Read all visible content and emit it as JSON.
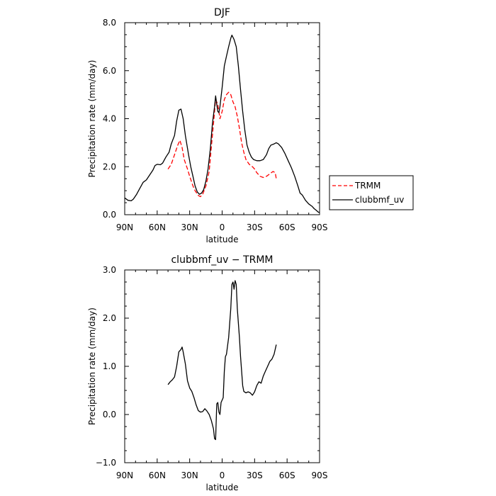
{
  "chart_data": [
    {
      "type": "line",
      "title": "DJF",
      "xlabel": "latitude",
      "ylabel": "Precipitation rate (mm/day)",
      "xlim": [
        90,
        -90
      ],
      "ylim": [
        0,
        8
      ],
      "xticks": [
        {
          "v": 90,
          "label": "90N"
        },
        {
          "v": 60,
          "label": "60N"
        },
        {
          "v": 30,
          "label": "30N"
        },
        {
          "v": 0,
          "label": "0"
        },
        {
          "v": -30,
          "label": "30S"
        },
        {
          "v": -60,
          "label": "60S"
        },
        {
          "v": -90,
          "label": "90S"
        }
      ],
      "yticks": [
        {
          "v": 0,
          "label": "0.0"
        },
        {
          "v": 2,
          "label": "2.0"
        },
        {
          "v": 4,
          "label": "4.0"
        },
        {
          "v": 6,
          "label": "6.0"
        },
        {
          "v": 8,
          "label": "8.0"
        }
      ],
      "legend": {
        "placement": "outside-right-bottom"
      },
      "series": [
        {
          "name": "TRMM",
          "color": "#ff0000",
          "dash": "dashed",
          "points": [
            [
              50,
              1.9
            ],
            [
              47,
              2.1
            ],
            [
              44,
              2.5
            ],
            [
              41,
              2.9
            ],
            [
              39,
              3.1
            ],
            [
              37,
              2.8
            ],
            [
              35,
              2.3
            ],
            [
              32,
              1.9
            ],
            [
              30,
              1.6
            ],
            [
              27,
              1.2
            ],
            [
              25,
              1.0
            ],
            [
              22,
              0.8
            ],
            [
              20,
              0.75
            ],
            [
              18,
              0.85
            ],
            [
              15,
              1.2
            ],
            [
              12,
              1.8
            ],
            [
              10,
              2.8
            ],
            [
              8,
              3.8
            ],
            [
              6,
              4.8
            ],
            [
              4,
              4.6
            ],
            [
              2,
              4.0
            ],
            [
              0,
              4.3
            ],
            [
              -2,
              4.8
            ],
            [
              -4,
              5.0
            ],
            [
              -6,
              5.1
            ],
            [
              -8,
              5.0
            ],
            [
              -10,
              4.7
            ],
            [
              -12,
              4.5
            ],
            [
              -14,
              4.1
            ],
            [
              -16,
              3.6
            ],
            [
              -18,
              3.0
            ],
            [
              -20,
              2.6
            ],
            [
              -22,
              2.3
            ],
            [
              -25,
              2.1
            ],
            [
              -28,
              2.0
            ],
            [
              -30,
              1.9
            ],
            [
              -32,
              1.75
            ],
            [
              -35,
              1.6
            ],
            [
              -38,
              1.55
            ],
            [
              -41,
              1.6
            ],
            [
              -44,
              1.7
            ],
            [
              -47,
              1.8
            ],
            [
              -49,
              1.75
            ],
            [
              -50,
              1.5
            ]
          ]
        },
        {
          "name": "clubbmf_uv",
          "color": "#000000",
          "dash": "solid",
          "points": [
            [
              90,
              0.7
            ],
            [
              87,
              0.6
            ],
            [
              84,
              0.58
            ],
            [
              82,
              0.65
            ],
            [
              79,
              0.85
            ],
            [
              76,
              1.1
            ],
            [
              73,
              1.35
            ],
            [
              70,
              1.45
            ],
            [
              67,
              1.65
            ],
            [
              64,
              1.85
            ],
            [
              62,
              2.05
            ],
            [
              60,
              2.1
            ],
            [
              57,
              2.08
            ],
            [
              55,
              2.15
            ],
            [
              52,
              2.4
            ],
            [
              49,
              2.6
            ],
            [
              47,
              2.95
            ],
            [
              44,
              3.3
            ],
            [
              42,
              3.9
            ],
            [
              40,
              4.35
            ],
            [
              38,
              4.4
            ],
            [
              36,
              4.0
            ],
            [
              34,
              3.3
            ],
            [
              31,
              2.5
            ],
            [
              29,
              2.0
            ],
            [
              27,
              1.6
            ],
            [
              25,
              1.2
            ],
            [
              23,
              0.95
            ],
            [
              21,
              0.85
            ],
            [
              19,
              0.9
            ],
            [
              17,
              1.05
            ],
            [
              15,
              1.4
            ],
            [
              13,
              1.9
            ],
            [
              11,
              2.7
            ],
            [
              9,
              3.8
            ],
            [
              7,
              4.5
            ],
            [
              6,
              4.95
            ],
            [
              5,
              4.6
            ],
            [
              4,
              4.3
            ],
            [
              3,
              4.25
            ],
            [
              2,
              4.5
            ],
            [
              0,
              5.3
            ],
            [
              -2,
              6.2
            ],
            [
              -4,
              6.6
            ],
            [
              -6,
              7.0
            ],
            [
              -8,
              7.35
            ],
            [
              -9,
              7.48
            ],
            [
              -11,
              7.3
            ],
            [
              -13,
              7.0
            ],
            [
              -15,
              6.2
            ],
            [
              -17,
              5.2
            ],
            [
              -19,
              4.3
            ],
            [
              -21,
              3.5
            ],
            [
              -23,
              2.9
            ],
            [
              -25,
              2.6
            ],
            [
              -27,
              2.4
            ],
            [
              -29,
              2.3
            ],
            [
              -32,
              2.25
            ],
            [
              -35,
              2.25
            ],
            [
              -38,
              2.3
            ],
            [
              -41,
              2.5
            ],
            [
              -43,
              2.75
            ],
            [
              -45,
              2.9
            ],
            [
              -48,
              2.95
            ],
            [
              -50,
              3.0
            ],
            [
              -52,
              2.95
            ],
            [
              -55,
              2.8
            ],
            [
              -58,
              2.55
            ],
            [
              -61,
              2.25
            ],
            [
              -64,
              1.95
            ],
            [
              -67,
              1.6
            ],
            [
              -70,
              1.2
            ],
            [
              -72,
              0.9
            ],
            [
              -74,
              0.82
            ],
            [
              -77,
              0.6
            ],
            [
              -80,
              0.45
            ],
            [
              -83,
              0.35
            ],
            [
              -85,
              0.25
            ],
            [
              -87,
              0.18
            ],
            [
              -89,
              0.1
            ],
            [
              -90,
              0.1
            ]
          ]
        }
      ]
    },
    {
      "type": "line",
      "title": "clubbmf_uv − TRMM",
      "xlabel": "latitude",
      "ylabel": "Precipitation rate (mm/day)",
      "xlim": [
        90,
        -90
      ],
      "ylim": [
        -1,
        3
      ],
      "xticks": [
        {
          "v": 90,
          "label": "90N"
        },
        {
          "v": 60,
          "label": "60N"
        },
        {
          "v": 30,
          "label": "30N"
        },
        {
          "v": 0,
          "label": "0"
        },
        {
          "v": -30,
          "label": "30S"
        },
        {
          "v": -60,
          "label": "60S"
        },
        {
          "v": -90,
          "label": "90S"
        }
      ],
      "yticks": [
        {
          "v": -1,
          "label": "−1.0"
        },
        {
          "v": 0,
          "label": "0.0"
        },
        {
          "v": 1,
          "label": "1.0"
        },
        {
          "v": 2,
          "label": "2.0"
        },
        {
          "v": 3,
          "label": "3.0"
        }
      ],
      "series": [
        {
          "color": "#000000",
          "dash": "solid",
          "points": [
            [
              50,
              0.62
            ],
            [
              48,
              0.68
            ],
            [
              46,
              0.72
            ],
            [
              44,
              0.78
            ],
            [
              42,
              1.0
            ],
            [
              40,
              1.3
            ],
            [
              38,
              1.35
            ],
            [
              37,
              1.4
            ],
            [
              36,
              1.3
            ],
            [
              34,
              1.05
            ],
            [
              32,
              0.7
            ],
            [
              30,
              0.55
            ],
            [
              28,
              0.48
            ],
            [
              26,
              0.35
            ],
            [
              24,
              0.2
            ],
            [
              22,
              0.08
            ],
            [
              20,
              0.05
            ],
            [
              18,
              0.06
            ],
            [
              16,
              0.12
            ],
            [
              14,
              0.07
            ],
            [
              12,
              0.0
            ],
            [
              10,
              -0.12
            ],
            [
              8,
              -0.3
            ],
            [
              7,
              -0.5
            ],
            [
              6,
              -0.52
            ],
            [
              5,
              0.22
            ],
            [
              4,
              0.25
            ],
            [
              3,
              0.05
            ],
            [
              2,
              0.0
            ],
            [
              1,
              0.25
            ],
            [
              0,
              0.3
            ],
            [
              -1,
              0.35
            ],
            [
              -2,
              0.9
            ],
            [
              -3,
              1.2
            ],
            [
              -4,
              1.25
            ],
            [
              -6,
              1.6
            ],
            [
              -8,
              2.2
            ],
            [
              -9,
              2.7
            ],
            [
              -10,
              2.75
            ],
            [
              -11,
              2.6
            ],
            [
              -12,
              2.78
            ],
            [
              -13,
              2.7
            ],
            [
              -14,
              2.2
            ],
            [
              -15,
              1.9
            ],
            [
              -16,
              1.6
            ],
            [
              -17,
              1.2
            ],
            [
              -18,
              0.9
            ],
            [
              -19,
              0.6
            ],
            [
              -20,
              0.48
            ],
            [
              -22,
              0.45
            ],
            [
              -24,
              0.47
            ],
            [
              -26,
              0.45
            ],
            [
              -28,
              0.4
            ],
            [
              -30,
              0.47
            ],
            [
              -32,
              0.6
            ],
            [
              -34,
              0.68
            ],
            [
              -36,
              0.65
            ],
            [
              -38,
              0.8
            ],
            [
              -40,
              0.9
            ],
            [
              -42,
              1.0
            ],
            [
              -44,
              1.1
            ],
            [
              -46,
              1.15
            ],
            [
              -48,
              1.25
            ],
            [
              -50,
              1.45
            ]
          ]
        }
      ]
    }
  ]
}
